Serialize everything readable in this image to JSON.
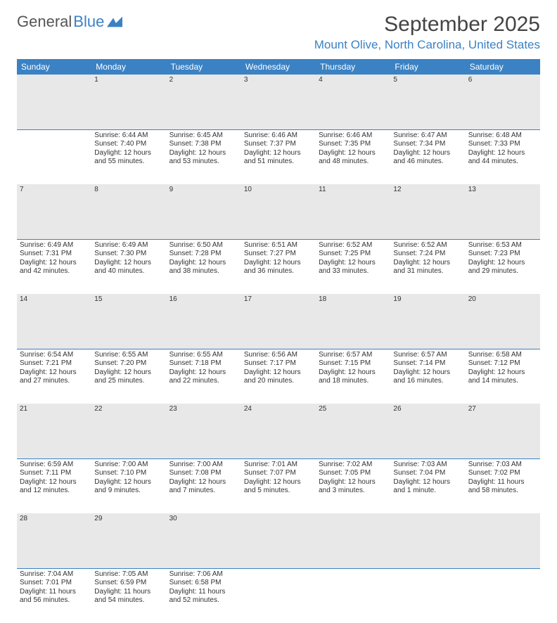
{
  "logo": {
    "text1": "General",
    "text2": "Blue"
  },
  "title": "September 2025",
  "location": "Mount Olive, North Carolina, United States",
  "colors": {
    "accent": "#3b82c4",
    "header_bg": "#3b82c4",
    "header_text": "#ffffff",
    "daynum_bg": "#e8e8e8",
    "text": "#333333"
  },
  "day_headers": [
    "Sunday",
    "Monday",
    "Tuesday",
    "Wednesday",
    "Thursday",
    "Friday",
    "Saturday"
  ],
  "weeks": [
    {
      "nums": [
        "",
        "1",
        "2",
        "3",
        "4",
        "5",
        "6"
      ],
      "cells": [
        null,
        {
          "sunrise": "Sunrise: 6:44 AM",
          "sunset": "Sunset: 7:40 PM",
          "daylight": "Daylight: 12 hours and 55 minutes."
        },
        {
          "sunrise": "Sunrise: 6:45 AM",
          "sunset": "Sunset: 7:38 PM",
          "daylight": "Daylight: 12 hours and 53 minutes."
        },
        {
          "sunrise": "Sunrise: 6:46 AM",
          "sunset": "Sunset: 7:37 PM",
          "daylight": "Daylight: 12 hours and 51 minutes."
        },
        {
          "sunrise": "Sunrise: 6:46 AM",
          "sunset": "Sunset: 7:35 PM",
          "daylight": "Daylight: 12 hours and 48 minutes."
        },
        {
          "sunrise": "Sunrise: 6:47 AM",
          "sunset": "Sunset: 7:34 PM",
          "daylight": "Daylight: 12 hours and 46 minutes."
        },
        {
          "sunrise": "Sunrise: 6:48 AM",
          "sunset": "Sunset: 7:33 PM",
          "daylight": "Daylight: 12 hours and 44 minutes."
        }
      ]
    },
    {
      "nums": [
        "7",
        "8",
        "9",
        "10",
        "11",
        "12",
        "13"
      ],
      "cells": [
        {
          "sunrise": "Sunrise: 6:49 AM",
          "sunset": "Sunset: 7:31 PM",
          "daylight": "Daylight: 12 hours and 42 minutes."
        },
        {
          "sunrise": "Sunrise: 6:49 AM",
          "sunset": "Sunset: 7:30 PM",
          "daylight": "Daylight: 12 hours and 40 minutes."
        },
        {
          "sunrise": "Sunrise: 6:50 AM",
          "sunset": "Sunset: 7:28 PM",
          "daylight": "Daylight: 12 hours and 38 minutes."
        },
        {
          "sunrise": "Sunrise: 6:51 AM",
          "sunset": "Sunset: 7:27 PM",
          "daylight": "Daylight: 12 hours and 36 minutes."
        },
        {
          "sunrise": "Sunrise: 6:52 AM",
          "sunset": "Sunset: 7:25 PM",
          "daylight": "Daylight: 12 hours and 33 minutes."
        },
        {
          "sunrise": "Sunrise: 6:52 AM",
          "sunset": "Sunset: 7:24 PM",
          "daylight": "Daylight: 12 hours and 31 minutes."
        },
        {
          "sunrise": "Sunrise: 6:53 AM",
          "sunset": "Sunset: 7:23 PM",
          "daylight": "Daylight: 12 hours and 29 minutes."
        }
      ]
    },
    {
      "nums": [
        "14",
        "15",
        "16",
        "17",
        "18",
        "19",
        "20"
      ],
      "cells": [
        {
          "sunrise": "Sunrise: 6:54 AM",
          "sunset": "Sunset: 7:21 PM",
          "daylight": "Daylight: 12 hours and 27 minutes."
        },
        {
          "sunrise": "Sunrise: 6:55 AM",
          "sunset": "Sunset: 7:20 PM",
          "daylight": "Daylight: 12 hours and 25 minutes."
        },
        {
          "sunrise": "Sunrise: 6:55 AM",
          "sunset": "Sunset: 7:18 PM",
          "daylight": "Daylight: 12 hours and 22 minutes."
        },
        {
          "sunrise": "Sunrise: 6:56 AM",
          "sunset": "Sunset: 7:17 PM",
          "daylight": "Daylight: 12 hours and 20 minutes."
        },
        {
          "sunrise": "Sunrise: 6:57 AM",
          "sunset": "Sunset: 7:15 PM",
          "daylight": "Daylight: 12 hours and 18 minutes."
        },
        {
          "sunrise": "Sunrise: 6:57 AM",
          "sunset": "Sunset: 7:14 PM",
          "daylight": "Daylight: 12 hours and 16 minutes."
        },
        {
          "sunrise": "Sunrise: 6:58 AM",
          "sunset": "Sunset: 7:12 PM",
          "daylight": "Daylight: 12 hours and 14 minutes."
        }
      ]
    },
    {
      "nums": [
        "21",
        "22",
        "23",
        "24",
        "25",
        "26",
        "27"
      ],
      "cells": [
        {
          "sunrise": "Sunrise: 6:59 AM",
          "sunset": "Sunset: 7:11 PM",
          "daylight": "Daylight: 12 hours and 12 minutes."
        },
        {
          "sunrise": "Sunrise: 7:00 AM",
          "sunset": "Sunset: 7:10 PM",
          "daylight": "Daylight: 12 hours and 9 minutes."
        },
        {
          "sunrise": "Sunrise: 7:00 AM",
          "sunset": "Sunset: 7:08 PM",
          "daylight": "Daylight: 12 hours and 7 minutes."
        },
        {
          "sunrise": "Sunrise: 7:01 AM",
          "sunset": "Sunset: 7:07 PM",
          "daylight": "Daylight: 12 hours and 5 minutes."
        },
        {
          "sunrise": "Sunrise: 7:02 AM",
          "sunset": "Sunset: 7:05 PM",
          "daylight": "Daylight: 12 hours and 3 minutes."
        },
        {
          "sunrise": "Sunrise: 7:03 AM",
          "sunset": "Sunset: 7:04 PM",
          "daylight": "Daylight: 12 hours and 1 minute."
        },
        {
          "sunrise": "Sunrise: 7:03 AM",
          "sunset": "Sunset: 7:02 PM",
          "daylight": "Daylight: 11 hours and 58 minutes."
        }
      ]
    },
    {
      "nums": [
        "28",
        "29",
        "30",
        "",
        "",
        "",
        ""
      ],
      "cells": [
        {
          "sunrise": "Sunrise: 7:04 AM",
          "sunset": "Sunset: 7:01 PM",
          "daylight": "Daylight: 11 hours and 56 minutes."
        },
        {
          "sunrise": "Sunrise: 7:05 AM",
          "sunset": "Sunset: 6:59 PM",
          "daylight": "Daylight: 11 hours and 54 minutes."
        },
        {
          "sunrise": "Sunrise: 7:06 AM",
          "sunset": "Sunset: 6:58 PM",
          "daylight": "Daylight: 11 hours and 52 minutes."
        },
        null,
        null,
        null,
        null
      ]
    }
  ]
}
